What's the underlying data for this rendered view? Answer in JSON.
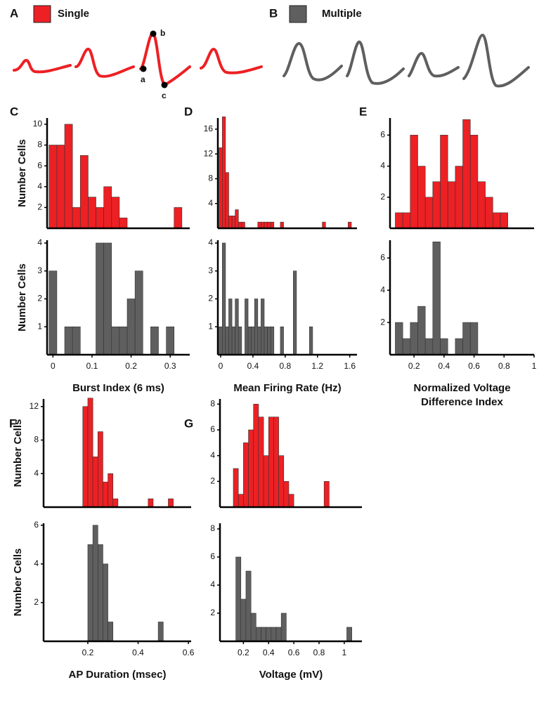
{
  "panels": [
    {
      "label": "A",
      "legend": "Single",
      "color": "#ed2024",
      "points": [
        "a",
        "b",
        "c"
      ]
    },
    {
      "label": "B",
      "legend": "Multiple",
      "color": "#5f5f5f"
    }
  ],
  "chart_data": [
    {
      "type": "histogram",
      "panel": "C",
      "ylabel": "Number Cells",
      "color": "#ed2024",
      "bins": [
        -0.01,
        0.01,
        0.03,
        0.05,
        0.07,
        0.09,
        0.11,
        0.13,
        0.15,
        0.17,
        0.19,
        0.21,
        0.23,
        0.25,
        0.27,
        0.29,
        0.31,
        0.33
      ],
      "counts": [
        8,
        8,
        10,
        2,
        7,
        3,
        2,
        4,
        3,
        1,
        0,
        0,
        0,
        0,
        0,
        0,
        2
      ],
      "xlim": [
        -0.015,
        0.35
      ],
      "ylim": [
        0,
        10.6
      ],
      "yticks": [
        2,
        4,
        6,
        8,
        10
      ]
    },
    {
      "type": "histogram",
      "ylabel": "Number Cells",
      "xlabel": [
        "Burst Index (6 ms)"
      ],
      "color": "#5f5f5f",
      "bins": [
        -0.01,
        0.01,
        0.03,
        0.05,
        0.07,
        0.09,
        0.11,
        0.13,
        0.15,
        0.17,
        0.19,
        0.21,
        0.23,
        0.25,
        0.27,
        0.29,
        0.31,
        0.33
      ],
      "counts": [
        3,
        0,
        1,
        1,
        0,
        0,
        4,
        4,
        1,
        1,
        2,
        3,
        0,
        1,
        0,
        1,
        0
      ],
      "xlim": [
        -0.015,
        0.35
      ],
      "ylim": [
        0,
        4.1
      ],
      "yticks": [
        1,
        2,
        3,
        4
      ],
      "xticks": [
        0,
        0.1,
        0.2,
        0.3
      ]
    },
    {
      "type": "histogram",
      "panel": "D",
      "color": "#ed2024",
      "bins": [
        -0.02,
        0.02,
        0.06,
        0.1,
        0.14,
        0.18,
        0.22,
        0.26,
        0.3,
        0.34,
        0.38,
        0.42,
        0.46,
        0.5,
        0.54,
        0.58,
        0.62,
        0.66,
        0.7,
        0.74,
        0.78,
        0.82,
        0.86,
        0.9,
        0.94,
        0.98,
        1.02,
        1.06,
        1.1,
        1.14,
        1.18,
        1.22,
        1.26,
        1.3,
        1.34,
        1.38,
        1.42,
        1.46,
        1.5,
        1.54,
        1.58,
        1.62,
        1.66
      ],
      "counts": [
        13,
        18,
        9,
        2,
        2,
        3,
        1,
        1,
        0,
        0,
        0,
        0,
        1,
        1,
        1,
        1,
        1,
        0,
        0,
        1,
        0,
        0,
        0,
        0,
        0,
        0,
        0,
        0,
        0,
        0,
        0,
        0,
        1,
        0,
        0,
        0,
        0,
        0,
        0,
        0,
        1,
        0
      ],
      "xlim": [
        -0.035,
        1.69
      ],
      "ylim": [
        0,
        17.8
      ],
      "yticks": [
        4,
        8,
        12,
        16
      ]
    },
    {
      "type": "histogram",
      "xlabel": [
        "Mean Firing Rate (Hz)"
      ],
      "color": "#5f5f5f",
      "bins": [
        -0.02,
        0.02,
        0.06,
        0.1,
        0.14,
        0.18,
        0.22,
        0.26,
        0.3,
        0.34,
        0.38,
        0.42,
        0.46,
        0.5,
        0.54,
        0.58,
        0.62,
        0.66,
        0.7,
        0.74,
        0.78,
        0.82,
        0.86,
        0.9,
        0.94,
        0.98,
        1.02,
        1.06,
        1.1,
        1.14,
        1.18,
        1.22,
        1.26,
        1.3,
        1.34,
        1.38,
        1.42,
        1.46,
        1.5,
        1.54,
        1.58,
        1.62,
        1.66
      ],
      "counts": [
        1,
        4,
        1,
        2,
        1,
        2,
        1,
        0,
        2,
        1,
        1,
        2,
        1,
        2,
        1,
        1,
        1,
        0,
        0,
        1,
        0,
        0,
        0,
        3,
        0,
        0,
        0,
        0,
        1,
        0,
        0,
        0,
        0,
        0,
        0,
        0,
        0,
        0,
        0,
        0,
        0,
        0
      ],
      "xlim": [
        -0.035,
        1.69
      ],
      "ylim": [
        0,
        4.1
      ],
      "yticks": [
        1,
        2,
        3,
        4
      ],
      "xticks": [
        0,
        0.4,
        0.8,
        1.2,
        1.6
      ]
    },
    {
      "type": "histogram",
      "panel": "E",
      "color": "#ed2024",
      "bins": [
        0.075,
        0.125,
        0.175,
        0.225,
        0.275,
        0.325,
        0.375,
        0.425,
        0.475,
        0.525,
        0.575,
        0.625,
        0.675,
        0.725,
        0.775,
        0.825
      ],
      "counts": [
        1,
        1,
        6,
        4,
        2,
        3,
        6,
        3,
        4,
        7,
        6,
        3,
        2,
        1,
        1
      ],
      "xlim": [
        0.04,
        1.0
      ],
      "ylim": [
        0,
        7.1
      ],
      "yticks": [
        2,
        4,
        6
      ]
    },
    {
      "type": "histogram",
      "xlabel": [
        "Normalized Voltage",
        "Difference Index"
      ],
      "color": "#5f5f5f",
      "bins": [
        0.075,
        0.125,
        0.175,
        0.225,
        0.275,
        0.325,
        0.375,
        0.425,
        0.475,
        0.525,
        0.575,
        0.625,
        0.675,
        0.725,
        0.775,
        0.825
      ],
      "counts": [
        2,
        1,
        2,
        3,
        1,
        7,
        1,
        0,
        1,
        2,
        2,
        0,
        0,
        0,
        0
      ],
      "xlim": [
        0.04,
        1.0
      ],
      "ylim": [
        0,
        7.1
      ],
      "yticks": [
        2,
        4,
        6
      ],
      "xticks": [
        0.2,
        0.4,
        0.6,
        0.8,
        1
      ]
    },
    {
      "type": "histogram",
      "panel": "F",
      "ylabel": "Number Cells",
      "color": "#ed2024",
      "bins": [
        0.18,
        0.2,
        0.22,
        0.24,
        0.26,
        0.28,
        0.3,
        0.32,
        0.34,
        0.36,
        0.38,
        0.4,
        0.42,
        0.44,
        0.46,
        0.48,
        0.5,
        0.52,
        0.54
      ],
      "counts": [
        12,
        13,
        6,
        9,
        3,
        4,
        1,
        0,
        0,
        0,
        0,
        0,
        0,
        1,
        0,
        0,
        0,
        1
      ],
      "xlim": [
        0.024,
        0.611
      ],
      "ylim": [
        0,
        12.9
      ],
      "yticks": [
        4,
        8,
        12
      ]
    },
    {
      "type": "histogram",
      "ylabel": "Number Cells",
      "xlabel": [
        "AP Duration (msec)"
      ],
      "color": "#5f5f5f",
      "bins": [
        0.18,
        0.2,
        0.22,
        0.24,
        0.26,
        0.28,
        0.3,
        0.32,
        0.34,
        0.36,
        0.38,
        0.4,
        0.42,
        0.44,
        0.46,
        0.48,
        0.5,
        0.52,
        0.54
      ],
      "counts": [
        0,
        5,
        6,
        5,
        4,
        1,
        0,
        0,
        0,
        0,
        0,
        0,
        0,
        0,
        0,
        1,
        0,
        0
      ],
      "xlim": [
        0.024,
        0.611
      ],
      "ylim": [
        0,
        6.1
      ],
      "yticks": [
        2,
        4,
        6
      ],
      "xticks": [
        0.2,
        0.4,
        0.6
      ]
    },
    {
      "type": "histogram",
      "panel": "G",
      "color": "#ed2024",
      "bins": [
        0.12,
        0.16,
        0.2,
        0.24,
        0.28,
        0.32,
        0.36,
        0.4,
        0.44,
        0.48,
        0.52,
        0.56,
        0.6,
        0.64,
        0.68,
        0.72,
        0.76,
        0.8,
        0.84,
        0.88
      ],
      "counts": [
        3,
        1,
        5,
        6,
        8,
        7,
        4,
        7,
        7,
        4,
        2,
        1,
        0,
        0,
        0,
        0,
        0,
        0,
        2
      ],
      "xlim": [
        0.014,
        1.14
      ],
      "ylim": [
        0,
        8.4
      ],
      "yticks": [
        2,
        4,
        6,
        8
      ]
    },
    {
      "type": "histogram",
      "xlabel": [
        "Voltage (mV)"
      ],
      "color": "#5f5f5f",
      "bins": [
        0.14,
        0.18,
        0.22,
        0.26,
        0.3,
        0.34,
        0.38,
        0.42,
        0.46,
        0.5,
        0.54,
        0.58,
        0.62,
        0.66,
        0.7,
        0.74,
        0.78,
        0.82,
        0.86,
        0.9,
        0.94,
        0.98,
        1.02,
        1.06
      ],
      "counts": [
        6,
        3,
        5,
        2,
        1,
        1,
        1,
        1,
        1,
        2,
        0,
        0,
        0,
        0,
        0,
        0,
        0,
        0,
        0,
        0,
        0,
        0,
        1
      ],
      "xlim": [
        0.014,
        1.14
      ],
      "ylim": [
        0,
        8.4
      ],
      "yticks": [
        2,
        4,
        6,
        8
      ],
      "xticks": [
        0.2,
        0.4,
        0.6,
        0.8,
        1
      ]
    }
  ]
}
